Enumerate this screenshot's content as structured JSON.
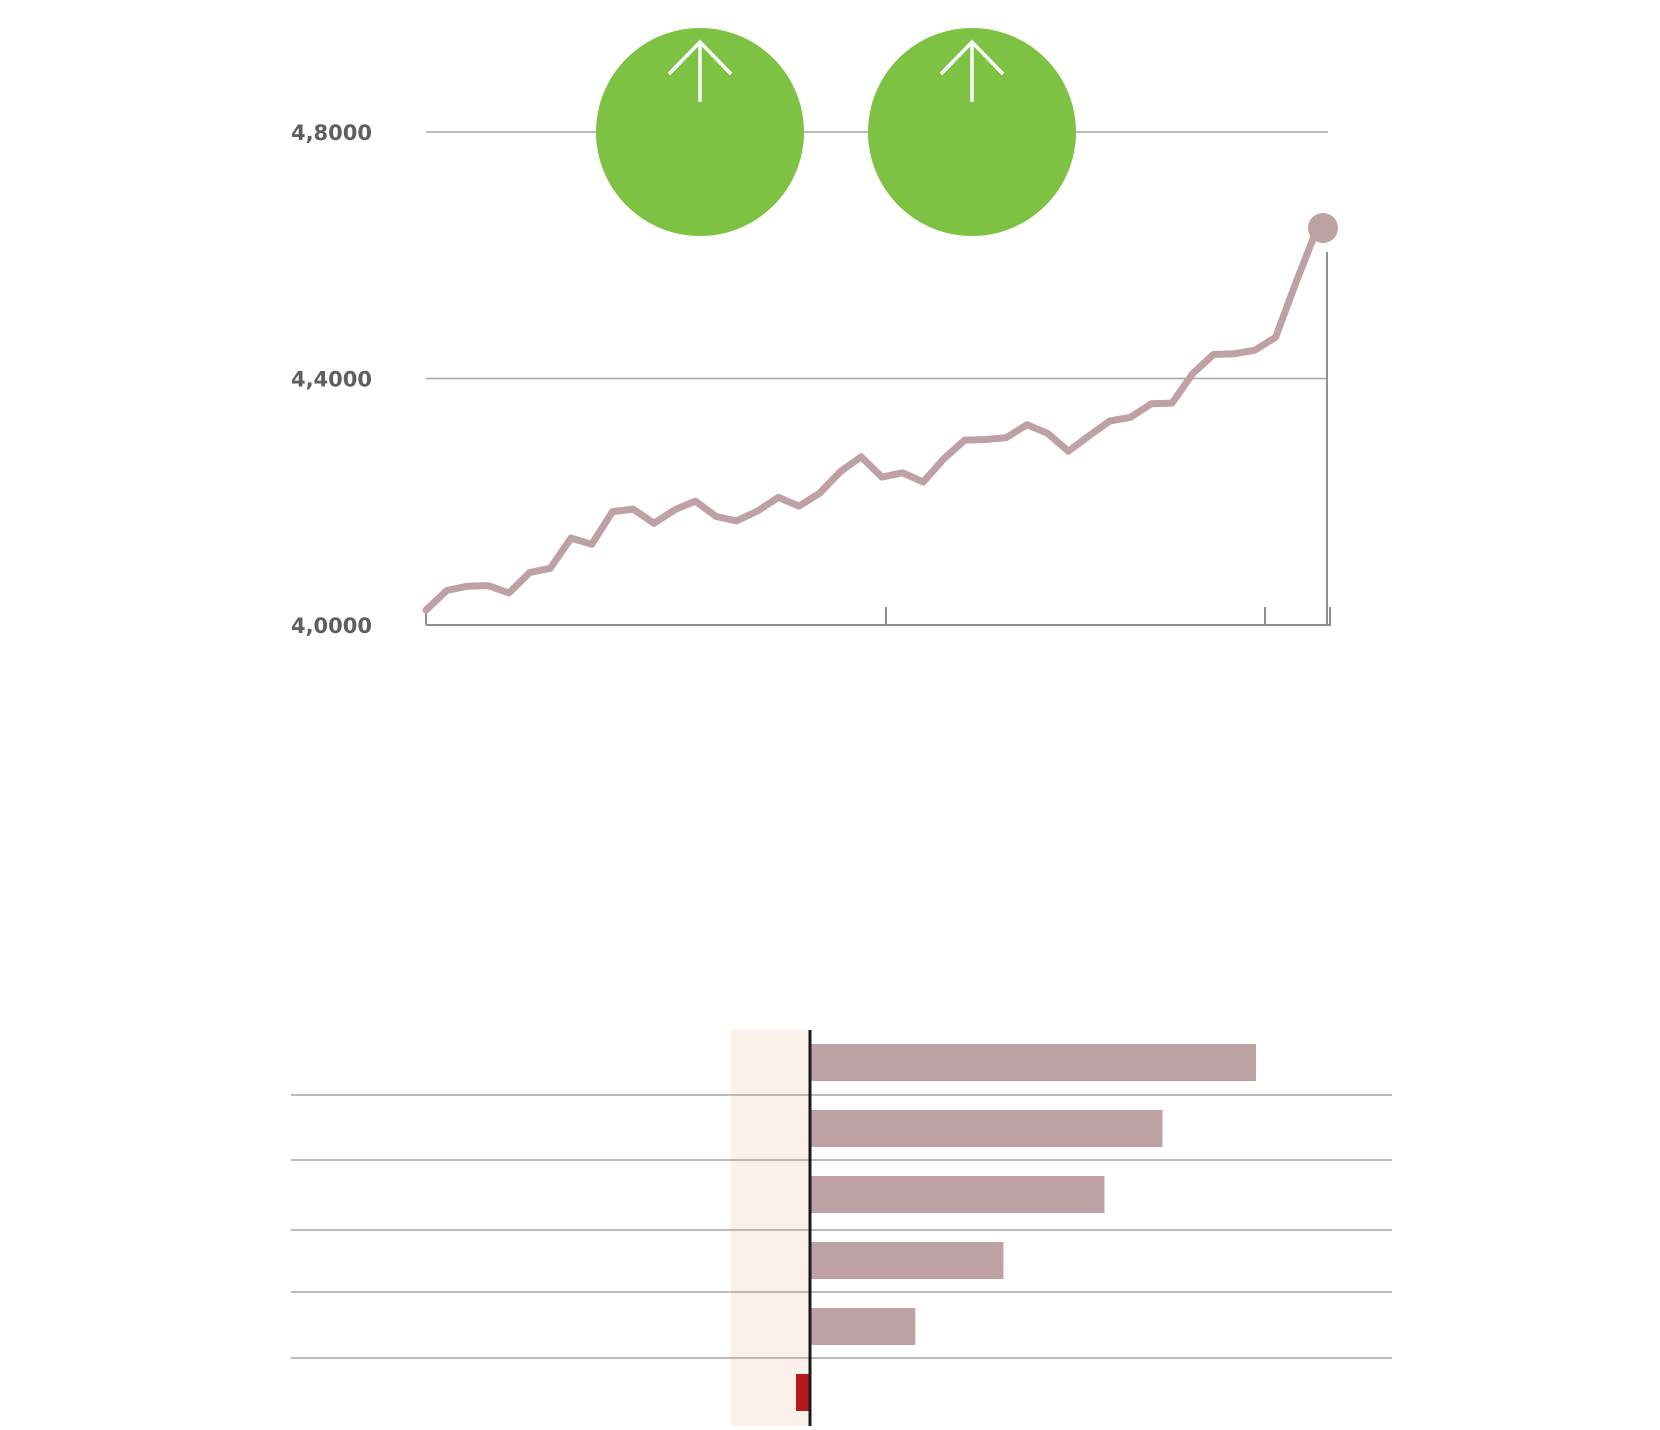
{
  "colors": {
    "line": "#bea1a4",
    "bar": "#bea1a4",
    "negative_bar": "#b3191d",
    "badge": "#7dc243",
    "highlight_band": "#fcf0eb",
    "gridline": "#a6a6a6",
    "tick_text": "#5f5f5f"
  },
  "badges": [
    {
      "icon": "up-arrow-icon"
    },
    {
      "icon": "up-arrow-icon"
    }
  ],
  "chart_data": [
    {
      "type": "line",
      "ylim": [
        4.0,
        4.8
      ],
      "yticks": [
        {
          "value": 4.8,
          "label": "4,8000"
        },
        {
          "value": 4.4,
          "label": "4,4000"
        },
        {
          "value": 4.0,
          "label": "4,0000"
        }
      ],
      "grid": true,
      "end_marker": true,
      "series": [
        {
          "values": [
            4.024,
            4.056,
            4.063,
            4.064,
            4.052,
            4.085,
            4.092,
            4.141,
            4.131,
            4.184,
            4.188,
            4.165,
            4.187,
            4.201,
            4.176,
            4.169,
            4.185,
            4.207,
            4.193,
            4.214,
            4.249,
            4.273,
            4.24,
            4.247,
            4.232,
            4.27,
            4.3,
            4.301,
            4.304,
            4.325,
            4.311,
            4.282,
            4.307,
            4.331,
            4.337,
            4.359,
            4.36,
            4.408,
            4.439,
            4.44,
            4.446,
            4.467,
            4.557,
            4.643
          ]
        }
      ]
    },
    {
      "type": "bar",
      "orientation": "horizontal",
      "grid": true,
      "series": [
        {
          "values": [
            0.83,
            0.656,
            0.548,
            0.36,
            0.196,
            -0.026
          ]
        }
      ]
    }
  ]
}
